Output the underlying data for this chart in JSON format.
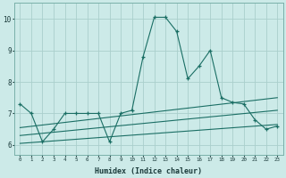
{
  "xlabel": "Humidex (Indice chaleur)",
  "bg_color": "#cceae8",
  "line_color": "#1a6e64",
  "grid_color": "#aacfcc",
  "xlim": [
    -0.5,
    23.5
  ],
  "ylim": [
    5.7,
    10.5
  ],
  "xticks": [
    0,
    1,
    2,
    3,
    4,
    5,
    6,
    7,
    8,
    9,
    10,
    11,
    12,
    13,
    14,
    15,
    16,
    17,
    18,
    19,
    20,
    21,
    22,
    23
  ],
  "yticks": [
    6,
    7,
    8,
    9,
    10
  ],
  "series1_x": [
    0,
    1,
    2,
    3,
    4,
    5,
    6,
    7,
    8,
    9,
    10,
    11,
    12,
    13,
    14,
    15,
    16,
    17,
    18,
    19,
    20,
    21,
    22,
    23
  ],
  "series1_y": [
    7.3,
    7.0,
    6.1,
    6.5,
    7.0,
    7.0,
    7.0,
    7.0,
    6.1,
    7.0,
    7.1,
    8.8,
    10.05,
    10.05,
    9.6,
    8.1,
    8.5,
    9.0,
    7.5,
    7.35,
    7.3,
    6.8,
    6.5,
    6.6
  ],
  "series2_x": [
    0,
    23
  ],
  "series2_y": [
    6.05,
    6.65
  ],
  "series3_x": [
    0,
    23
  ],
  "series3_y": [
    6.3,
    7.1
  ],
  "series4_x": [
    0,
    23
  ],
  "series4_y": [
    6.55,
    7.5
  ]
}
